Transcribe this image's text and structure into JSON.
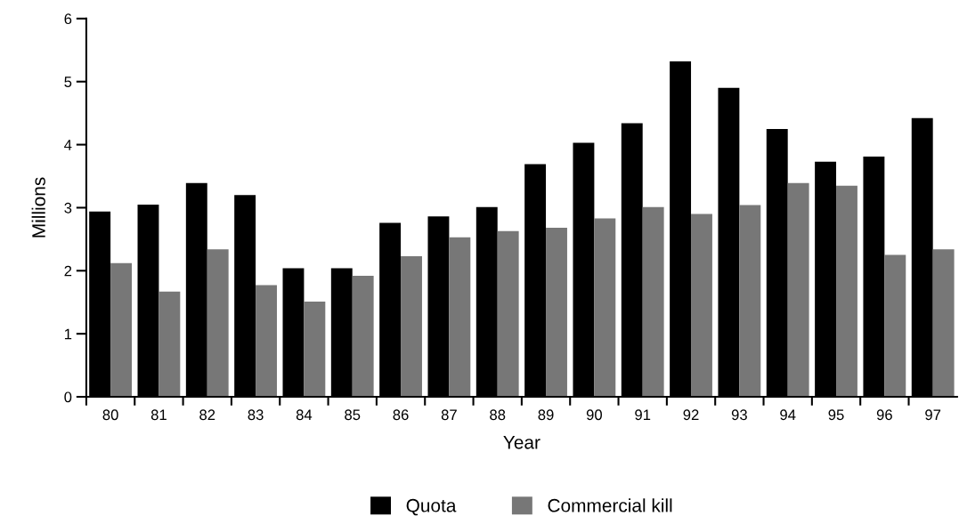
{
  "chart_data": {
    "type": "bar",
    "xlabel": "Year",
    "ylabel": "Millions",
    "categories": [
      "80",
      "81",
      "82",
      "83",
      "84",
      "85",
      "86",
      "87",
      "88",
      "89",
      "90",
      "91",
      "92",
      "93",
      "94",
      "95",
      "96",
      "97"
    ],
    "series": [
      {
        "name": "Quota",
        "color": "#000000",
        "values": [
          2.94,
          3.05,
          3.39,
          3.2,
          2.04,
          2.04,
          2.76,
          2.86,
          3.01,
          3.69,
          4.03,
          4.34,
          5.32,
          4.9,
          4.25,
          3.73,
          3.81,
          4.42
        ]
      },
      {
        "name": "Commercial kill",
        "color": "#777777",
        "values": [
          2.12,
          1.67,
          2.34,
          1.77,
          1.51,
          1.92,
          2.23,
          2.53,
          2.63,
          2.68,
          2.83,
          3.01,
          2.9,
          3.04,
          3.39,
          3.35,
          2.25,
          2.34
        ]
      }
    ],
    "ylim": [
      0,
      6
    ],
    "yticks": [
      0,
      1,
      2,
      3,
      4,
      5,
      6
    ],
    "grid": false,
    "legend": "bottom"
  }
}
